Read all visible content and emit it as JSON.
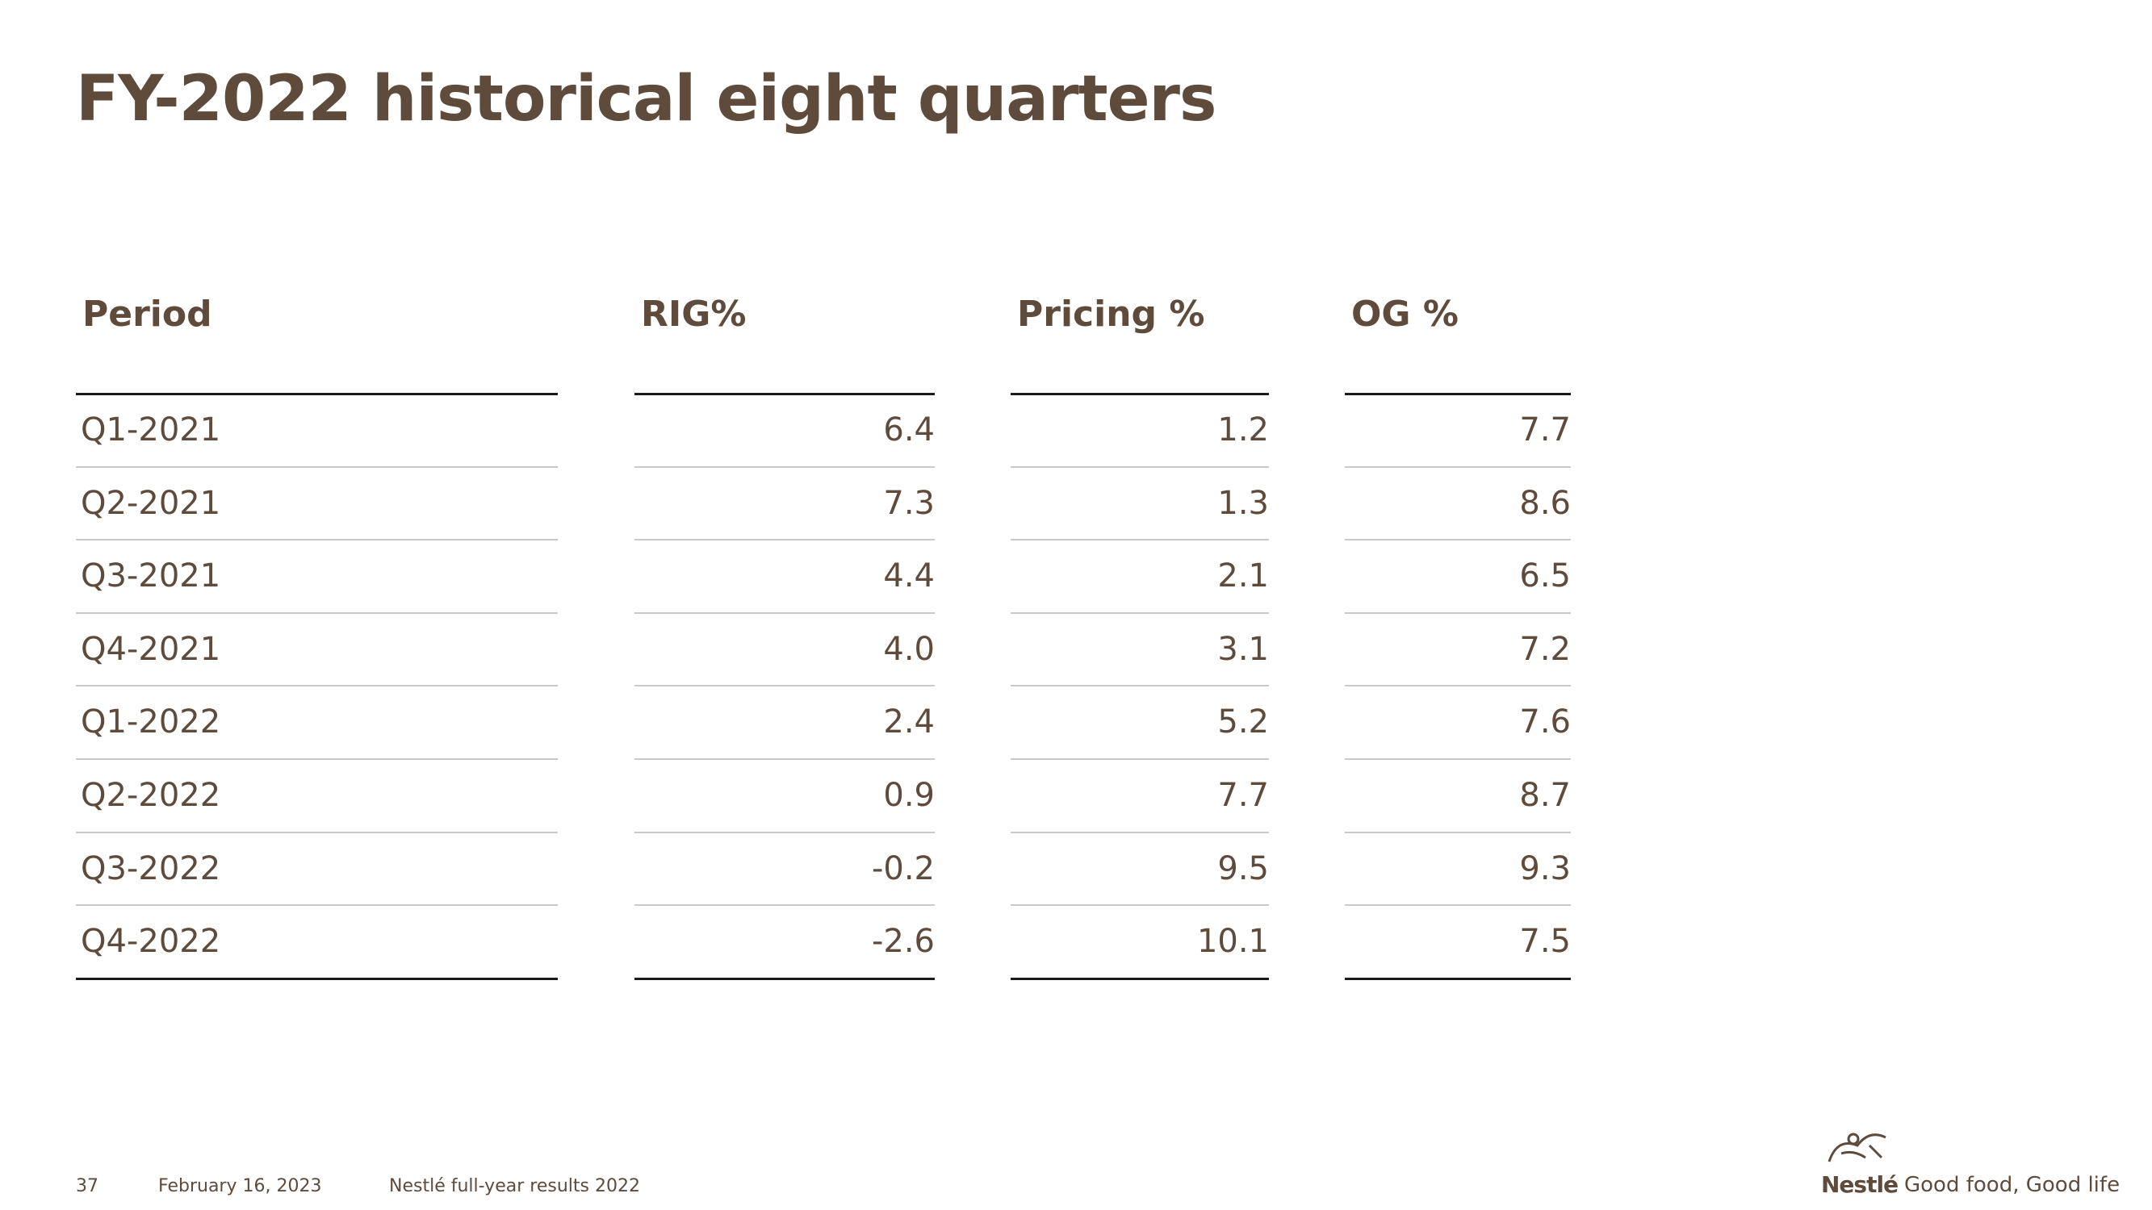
{
  "title": "FY-2022 historical eight quarters",
  "table": {
    "columns": [
      "Period",
      "RIG%",
      "Pricing %",
      "OG %"
    ],
    "rows": [
      [
        "Q1-2021",
        "6.4",
        "1.2",
        "7.7"
      ],
      [
        "Q2-2021",
        "7.3",
        "1.3",
        "8.6"
      ],
      [
        "Q3-2021",
        "4.4",
        "2.1",
        "6.5"
      ],
      [
        "Q4-2021",
        "4.0",
        "3.1",
        "7.2"
      ],
      [
        "Q1-2022",
        "2.4",
        "5.2",
        "7.6"
      ],
      [
        "Q2-2022",
        "0.9",
        "7.7",
        "8.7"
      ],
      [
        "Q3-2022",
        "-0.2",
        "9.5",
        "9.3"
      ],
      [
        "Q4-2022",
        "-2.6",
        "10.1",
        "7.5"
      ]
    ]
  },
  "footer": {
    "page": "37",
    "date": "February 16, 2023",
    "document": "Nestlé full-year results 2022"
  },
  "brand": {
    "name": "Nestlé",
    "tagline": "Good food, Good life"
  }
}
